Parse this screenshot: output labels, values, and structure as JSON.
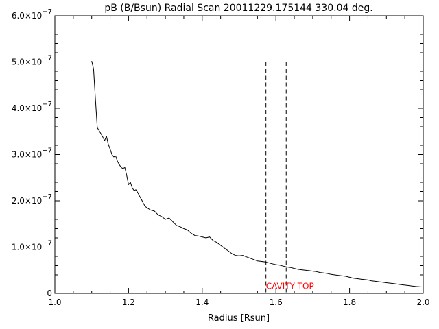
{
  "chart_data": {
    "type": "line",
    "title": "pB (B/Bsun) Radial Scan 20011229.175144 330.04 deg.",
    "xlabel": "Radius [Rsun]",
    "ylabel": "",
    "xlim": [
      1.0,
      2.0
    ],
    "ylim": [
      0,
      6e-07
    ],
    "grid": false,
    "legend": "none",
    "x_ticks": [
      {
        "value": 1.0,
        "label": "1.0"
      },
      {
        "value": 1.2,
        "label": "1.2"
      },
      {
        "value": 1.4,
        "label": "1.4"
      },
      {
        "value": 1.6,
        "label": "1.6"
      },
      {
        "value": 1.8,
        "label": "1.8"
      },
      {
        "value": 2.0,
        "label": "2.0"
      }
    ],
    "y_ticks": [
      {
        "value": 0,
        "mantissa": "0",
        "exponent": ""
      },
      {
        "value": 1e-07,
        "mantissa": "1.0×10",
        "exponent": "−7"
      },
      {
        "value": 2e-07,
        "mantissa": "2.0×10",
        "exponent": "−7"
      },
      {
        "value": 3e-07,
        "mantissa": "3.0×10",
        "exponent": "−7"
      },
      {
        "value": 4e-07,
        "mantissa": "4.0×10",
        "exponent": "−7"
      },
      {
        "value": 5e-07,
        "mantissa": "5.0×10",
        "exponent": "−7"
      },
      {
        "value": 6e-07,
        "mantissa": "6.0×10",
        "exponent": "−7"
      }
    ],
    "x_minor_step": 0.05,
    "y_minor_step": 2e-08,
    "series": [
      {
        "color": "#000000",
        "x": [
          1.1,
          1.105,
          1.11,
          1.115,
          1.12,
          1.125,
          1.13,
          1.135,
          1.14,
          1.145,
          1.15,
          1.155,
          1.16,
          1.165,
          1.17,
          1.175,
          1.18,
          1.185,
          1.19,
          1.195,
          1.2,
          1.205,
          1.21,
          1.215,
          1.22,
          1.225,
          1.23,
          1.235,
          1.24,
          1.245,
          1.25,
          1.26,
          1.27,
          1.28,
          1.29,
          1.3,
          1.31,
          1.32,
          1.33,
          1.34,
          1.35,
          1.36,
          1.37,
          1.38,
          1.39,
          1.4,
          1.41,
          1.42,
          1.43,
          1.44,
          1.45,
          1.46,
          1.47,
          1.48,
          1.49,
          1.5,
          1.51,
          1.52,
          1.53,
          1.54,
          1.55,
          1.56,
          1.57,
          1.58,
          1.59,
          1.6,
          1.61,
          1.62,
          1.63,
          1.64,
          1.65,
          1.66,
          1.67,
          1.68,
          1.69,
          1.7,
          1.71,
          1.72,
          1.73,
          1.74,
          1.75,
          1.76,
          1.77,
          1.78,
          1.79,
          1.8,
          1.81,
          1.82,
          1.83,
          1.84,
          1.85,
          1.86,
          1.87,
          1.88,
          1.89,
          1.9,
          1.91,
          1.92,
          1.93,
          1.94,
          1.95,
          1.96,
          1.97,
          1.98,
          1.99,
          2.0
        ],
        "y": [
          5.02e-07,
          4.85e-07,
          4.2e-07,
          3.58e-07,
          3.52e-07,
          3.45e-07,
          3.38e-07,
          3.3e-07,
          3.4e-07,
          3.22e-07,
          3.12e-07,
          3e-07,
          2.95e-07,
          2.97e-07,
          2.85e-07,
          2.78e-07,
          2.72e-07,
          2.7e-07,
          2.72e-07,
          2.55e-07,
          2.35e-07,
          2.4e-07,
          2.28e-07,
          2.22e-07,
          2.24e-07,
          2.18e-07,
          2.1e-07,
          2.03e-07,
          1.95e-07,
          1.88e-07,
          1.85e-07,
          1.8e-07,
          1.78e-07,
          1.7e-07,
          1.66e-07,
          1.6e-07,
          1.63e-07,
          1.55e-07,
          1.47e-07,
          1.44e-07,
          1.4e-07,
          1.37e-07,
          1.3e-07,
          1.25e-07,
          1.24e-07,
          1.22e-07,
          1.2e-07,
          1.22e-07,
          1.14e-07,
          1.1e-07,
          1.04e-07,
          9.8e-08,
          9.2e-08,
          8.6e-08,
          8.2e-08,
          8.1e-08,
          8.2e-08,
          7.9e-08,
          7.6e-08,
          7.3e-08,
          7e-08,
          6.9e-08,
          6.8e-08,
          6.6e-08,
          6.4e-08,
          6.2e-08,
          6.1e-08,
          5.9e-08,
          5.7e-08,
          5.6e-08,
          5.4e-08,
          5.2e-08,
          5.1e-08,
          5e-08,
          4.9e-08,
          4.8e-08,
          4.7e-08,
          4.5e-08,
          4.4e-08,
          4.3e-08,
          4.1e-08,
          4e-08,
          3.9e-08,
          3.8e-08,
          3.7e-08,
          3.5e-08,
          3.3e-08,
          3.2e-08,
          3.1e-08,
          3e-08,
          2.9e-08,
          2.7e-08,
          2.6e-08,
          2.5e-08,
          2.4e-08,
          2.3e-08,
          2.2e-08,
          2.1e-08,
          2e-08,
          1.9e-08,
          1.8e-08,
          1.7e-08,
          1.6e-08,
          1.5e-08,
          1.45e-08,
          1.4e-08
        ]
      }
    ],
    "vlines": [
      {
        "x": 1.573,
        "y_top": 5e-07,
        "style": "dashed",
        "color": "#000000"
      },
      {
        "x": 1.628,
        "y_top": 5e-07,
        "style": "dashed",
        "color": "#000000"
      }
    ],
    "annotations": [
      {
        "text": "CAVITY TOP",
        "x": 1.573,
        "y": 1.4e-08,
        "color": "#ff0000"
      }
    ]
  }
}
